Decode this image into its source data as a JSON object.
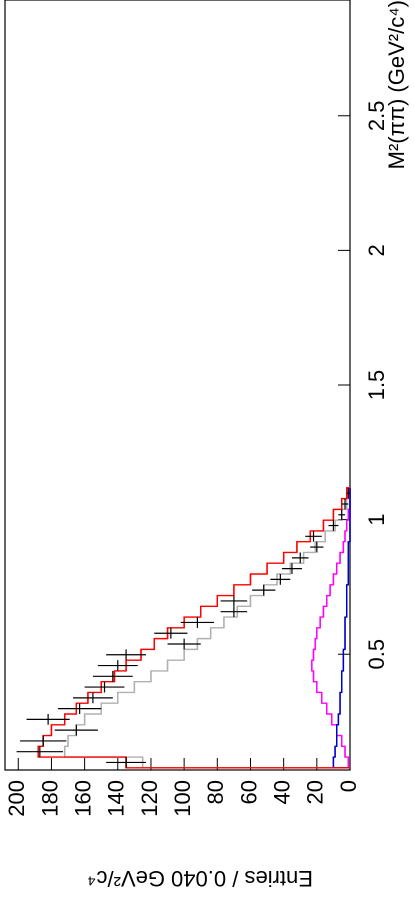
{
  "chart_data": {
    "type": "histogram",
    "x_label": "M²(ππ) (GeV²/c⁴)",
    "y_label": "Entries / 0.040 GeV²/c⁴",
    "xlim": [
      0.07,
      2.93
    ],
    "ylim": [
      0,
      208
    ],
    "xticks": [
      0.5,
      1,
      1.5,
      2,
      2.5
    ],
    "yticks": [
      0,
      20,
      40,
      60,
      80,
      100,
      120,
      140,
      160,
      180,
      200
    ],
    "bins": [
      0.078,
      0.118,
      0.158,
      0.198,
      0.238,
      0.278,
      0.318,
      0.358,
      0.398,
      0.438,
      0.478,
      0.518,
      0.558,
      0.598,
      0.638,
      0.678,
      0.718,
      0.758,
      0.798,
      0.838,
      0.878,
      0.918,
      0.958,
      0.998,
      1.038,
      1.078,
      1.118
    ],
    "data": {
      "color": "#000000",
      "values": [
        135,
        187,
        185,
        165,
        182,
        163,
        155,
        148,
        143,
        140,
        135,
        100,
        108,
        92,
        70,
        70,
        52,
        42,
        35,
        30,
        20,
        22,
        10,
        5,
        3,
        1
      ],
      "errors": [
        12,
        14,
        14,
        13,
        13,
        13,
        12,
        12,
        12,
        12,
        12,
        10,
        10,
        10,
        8,
        8,
        7,
        6,
        6,
        5,
        4,
        5,
        3,
        2,
        2,
        1
      ]
    },
    "series": [
      {
        "color": "#b0b0b0",
        "values": [
          125,
          172,
          170,
          165,
          160,
          150,
          140,
          130,
          120,
          110,
          100,
          92,
          84,
          76,
          68,
          60,
          52,
          44,
          36,
          28,
          21,
          15,
          9,
          5,
          2,
          1
        ]
      },
      {
        "color": "#ff00ff",
        "values": [
          1,
          3,
          5,
          8,
          11,
          14,
          17,
          20,
          22,
          23,
          22,
          21,
          20,
          18,
          16,
          14,
          12,
          10,
          8,
          6,
          4,
          3,
          2,
          1,
          0,
          0
        ]
      },
      {
        "color": "#0000cc",
        "values": [
          10,
          9,
          8,
          8,
          7,
          6,
          6,
          5,
          5,
          4,
          4,
          3,
          3,
          3,
          2,
          2,
          2,
          1,
          1,
          1,
          1,
          0,
          0,
          0,
          0,
          0
        ]
      },
      {
        "color": "#ff0000",
        "values": [
          135,
          188,
          185,
          180,
          172,
          165,
          158,
          150,
          142,
          135,
          126,
          118,
          110,
          100,
          90,
          80,
          70,
          60,
          50,
          40,
          32,
          24,
          16,
          10,
          5,
          2
        ]
      }
    ]
  }
}
